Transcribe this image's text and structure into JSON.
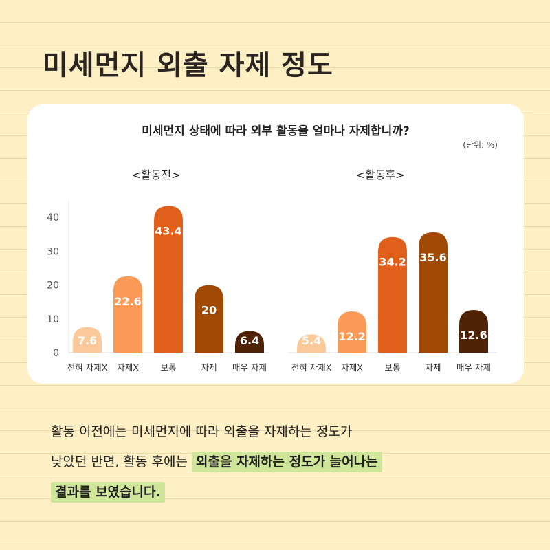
{
  "title": "미세먼지 외출 자제 정도",
  "chart_data": {
    "type": "bar",
    "title": "미세먼지 상태에 따라 외부 활동을 얼마나 자제합니까?",
    "unit": "(단위: %)",
    "categories": [
      "전혀 자제X",
      "자제X",
      "보통",
      "자제",
      "매우 자제"
    ],
    "colors": [
      "#fcc99a",
      "#fb9a57",
      "#e0601b",
      "#a04a06",
      "#4e2305"
    ],
    "ylim": [
      0,
      45
    ],
    "yticks": [
      0,
      10,
      20,
      30,
      40
    ],
    "grid": false,
    "panels": [
      {
        "name": "<활동전>",
        "values": [
          7.6,
          22.6,
          43.4,
          20,
          6.4
        ]
      },
      {
        "name": "<활동후>",
        "values": [
          5.4,
          12.2,
          34.2,
          35.6,
          12.6
        ]
      }
    ]
  },
  "description": {
    "line1": "활동 이전에는 미세먼지에 따라 외출을 자제하는 정도가",
    "line2_plain": "낮았던 반면, 활동 후에는",
    "line2_highlight": "외출을 자제하는 정도가 늘어나는",
    "line3_highlight": "결과를 보였습니다."
  }
}
